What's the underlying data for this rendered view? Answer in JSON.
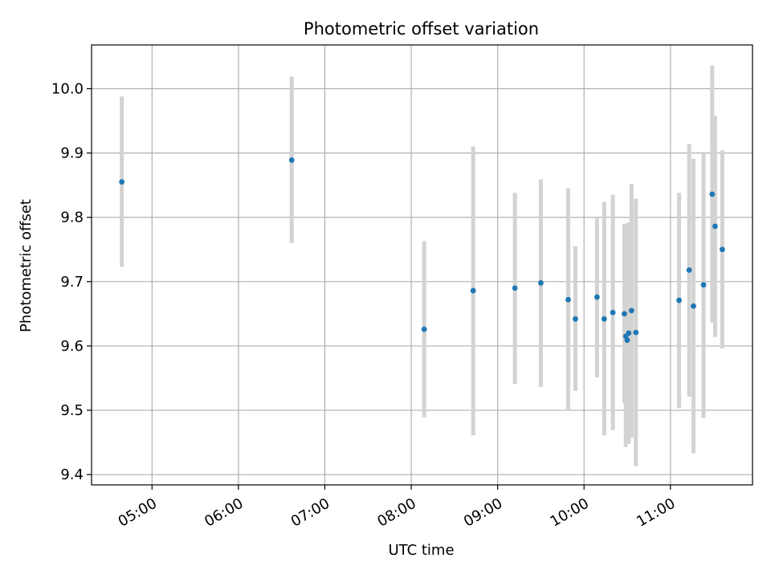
{
  "chart_data": {
    "type": "scatter",
    "title": "Photometric offset variation",
    "xlabel": "UTC time",
    "ylabel": "Photometric offset",
    "x_axis": "time",
    "xlim": [
      "04:18",
      "11:57"
    ],
    "ylim": [
      9.384,
      10.068
    ],
    "x_ticks": [
      "05:00",
      "06:00",
      "07:00",
      "08:00",
      "09:00",
      "10:00",
      "11:00"
    ],
    "y_ticks": [
      9.4,
      9.5,
      9.6,
      9.7,
      9.8,
      9.9,
      10.0
    ],
    "y_tick_labels": [
      "9.4",
      "9.5",
      "9.6",
      "9.7",
      "9.8",
      "9.9",
      "10.0"
    ],
    "grid": true,
    "colors": {
      "point": "#1f77b4",
      "errorbar": "#d3d3d3",
      "grid": "#b0b0b0"
    },
    "series": [
      {
        "points": [
          {
            "x": "04:39",
            "y": 9.855,
            "ylow": 9.723,
            "yhigh": 9.988
          },
          {
            "x": "06:37",
            "y": 9.889,
            "ylow": 9.76,
            "yhigh": 10.019
          },
          {
            "x": "08:09",
            "y": 9.626,
            "ylow": 9.489,
            "yhigh": 9.763
          },
          {
            "x": "08:43",
            "y": 9.686,
            "ylow": 9.461,
            "yhigh": 9.91
          },
          {
            "x": "09:12",
            "y": 9.69,
            "ylow": 9.541,
            "yhigh": 9.838
          },
          {
            "x": "09:30",
            "y": 9.698,
            "ylow": 9.536,
            "yhigh": 9.859
          },
          {
            "x": "09:49",
            "y": 9.672,
            "ylow": 9.5,
            "yhigh": 9.845
          },
          {
            "x": "09:54",
            "y": 9.642,
            "ylow": 9.53,
            "yhigh": 9.755
          },
          {
            "x": "10:09",
            "y": 9.676,
            "ylow": 9.551,
            "yhigh": 9.8
          },
          {
            "x": "10:14",
            "y": 9.642,
            "ylow": 9.461,
            "yhigh": 9.824
          },
          {
            "x": "10:20",
            "y": 9.652,
            "ylow": 9.469,
            "yhigh": 9.835
          },
          {
            "x": "10:28",
            "y": 9.65,
            "ylow": 9.511,
            "yhigh": 9.79
          },
          {
            "x": "10:29",
            "y": 9.615,
            "ylow": 9.443,
            "yhigh": 9.788
          },
          {
            "x": "10:30",
            "y": 9.609,
            "ylow": 9.453,
            "yhigh": 9.765
          },
          {
            "x": "10:31",
            "y": 9.62,
            "ylow": 9.448,
            "yhigh": 9.792
          },
          {
            "x": "10:33",
            "y": 9.655,
            "ylow": 9.457,
            "yhigh": 9.852
          },
          {
            "x": "10:36",
            "y": 9.621,
            "ylow": 9.413,
            "yhigh": 9.829
          },
          {
            "x": "11:06",
            "y": 9.671,
            "ylow": 9.503,
            "yhigh": 9.838
          },
          {
            "x": "11:13",
            "y": 9.718,
            "ylow": 9.521,
            "yhigh": 9.914
          },
          {
            "x": "11:16",
            "y": 9.662,
            "ylow": 9.433,
            "yhigh": 9.891
          },
          {
            "x": "11:23",
            "y": 9.695,
            "ylow": 9.488,
            "yhigh": 9.902
          },
          {
            "x": "11:29",
            "y": 9.836,
            "ylow": 9.636,
            "yhigh": 10.036
          },
          {
            "x": "11:31",
            "y": 9.786,
            "ylow": 9.614,
            "yhigh": 9.958
          },
          {
            "x": "11:36",
            "y": 9.75,
            "ylow": 9.596,
            "yhigh": 9.904
          }
        ]
      }
    ]
  }
}
